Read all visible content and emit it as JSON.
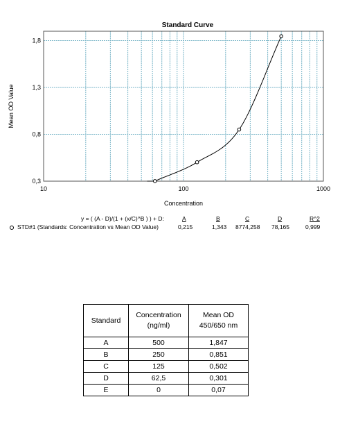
{
  "chart_data": {
    "type": "scatter",
    "title": "Standard Curve",
    "xlabel": "Concentration",
    "ylabel": "Mean OD Value",
    "x_scale": "log",
    "xlim": [
      10,
      1000
    ],
    "ylim": [
      0.3,
      1.9
    ],
    "x_tick_labels": [
      "10",
      "100",
      "1000"
    ],
    "y_tick_labels": [
      "0,3",
      "0,8",
      "1,3",
      "1,8"
    ],
    "y_ticks": [
      0.3,
      0.8,
      1.3,
      1.8
    ],
    "x_major_ticks": [
      10,
      100,
      1000
    ],
    "grid": true,
    "grid_color": "#7ab6c8",
    "series": [
      {
        "x": [
          62.5,
          125,
          250,
          500
        ],
        "y": [
          0.301,
          0.502,
          0.851,
          1.847
        ]
      }
    ],
    "fit": {
      "A": 0.215,
      "B": 1.343,
      "C": 8774.258,
      "D": 78.165
    }
  },
  "legend": {
    "equation": "y = ( (A - D)/(1 + (x/C)^B ) ) + D:",
    "headers": [
      "A",
      "B",
      "C",
      "D",
      "R^2"
    ],
    "entry_label": "STD#1 (Standards: Concentration vs Mean OD Value)",
    "values": [
      "0,215",
      "1,343",
      "8774,258",
      "78,165",
      "0,999"
    ]
  },
  "table": {
    "headers": {
      "standard": "Standard",
      "conc_line1": "Concentration",
      "conc_line2": "(ng/ml)",
      "od_line1": "Mean OD",
      "od_line2": "450/650 nm"
    },
    "rows": [
      {
        "standard": "A",
        "concentration": "500",
        "od": "1,847"
      },
      {
        "standard": "B",
        "concentration": "250",
        "od": "0,851"
      },
      {
        "standard": "C",
        "concentration": "125",
        "od": "0,502"
      },
      {
        "standard": "D",
        "concentration": "62,5",
        "od": "0,301"
      },
      {
        "standard": "E",
        "concentration": "0",
        "od": "0,07"
      }
    ]
  }
}
